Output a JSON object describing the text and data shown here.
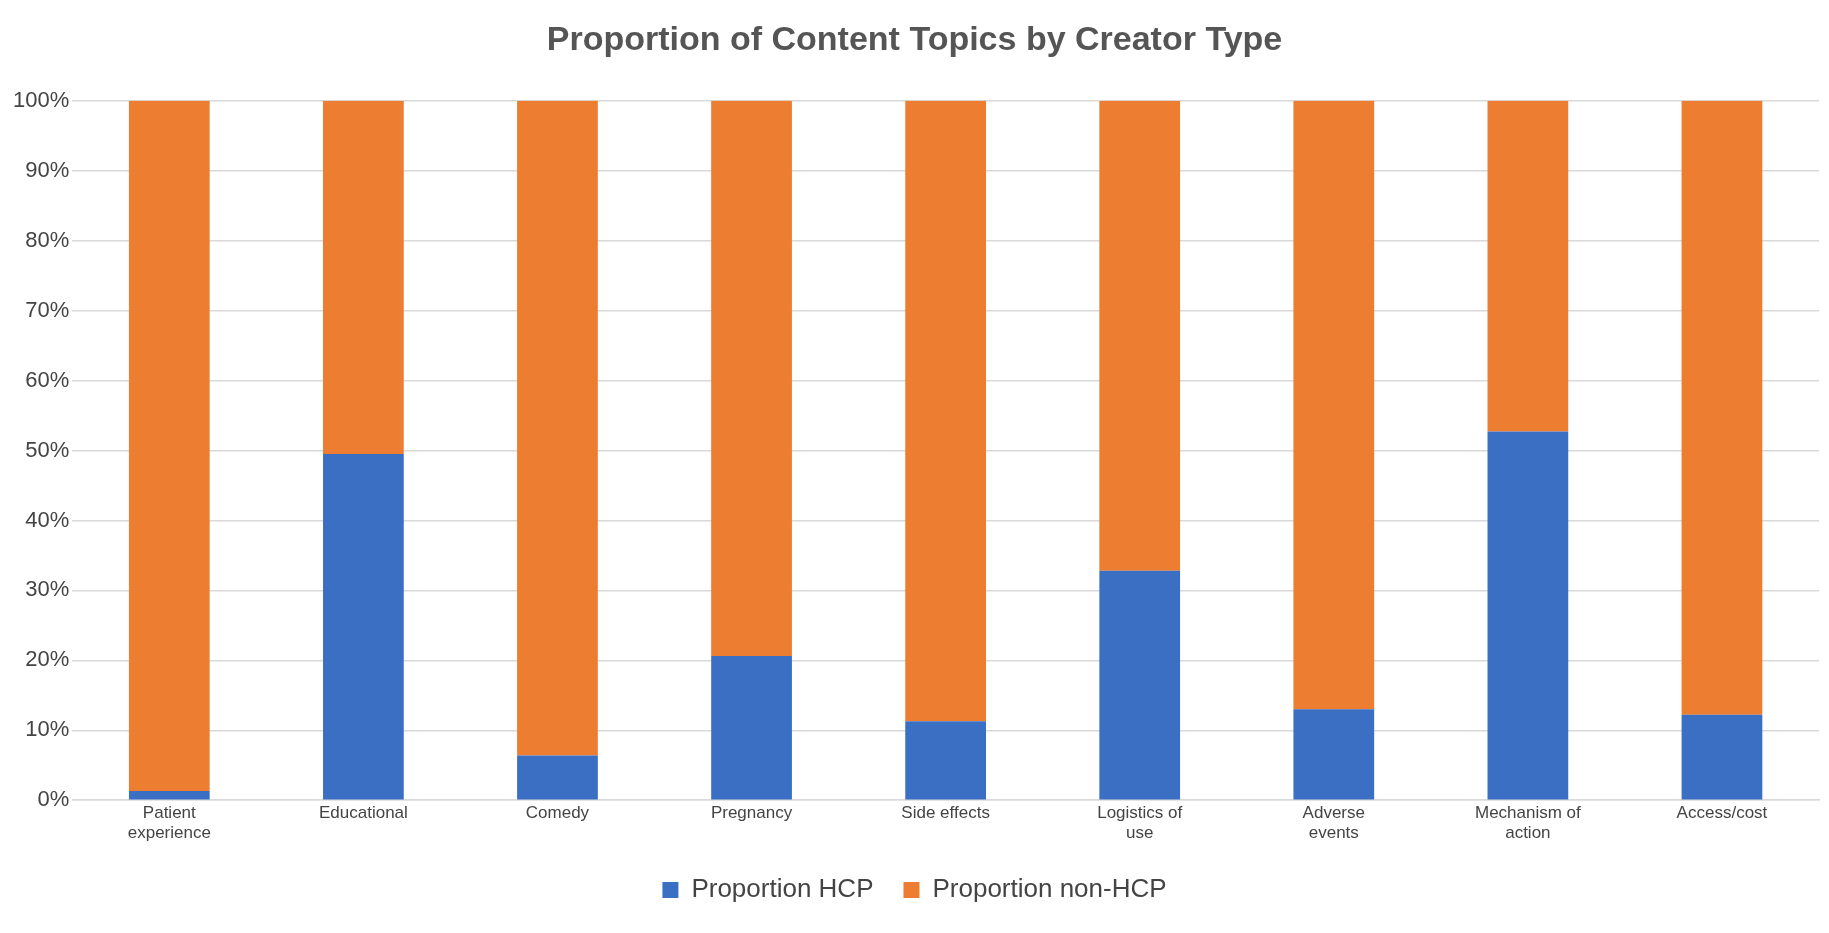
{
  "chart_data": {
    "type": "bar",
    "title": "Proportion of Content Topics by Creator Type",
    "categories": [
      "Patient experience",
      "Educational",
      "Comedy",
      "Pregnancy",
      "Side effects",
      "Logistics of use",
      "Adverse events",
      "Mechanism of action",
      "Access/cost"
    ],
    "series": [
      {
        "name": "Proportion HCP",
        "color": "#3a6fc4",
        "values": [
          1.3,
          49.5,
          6.4,
          20.6,
          11.3,
          32.8,
          13,
          52.7,
          12.2
        ]
      },
      {
        "name": "Proportion non-HCP",
        "color": "#ed7d31",
        "values": [
          98.7,
          50.5,
          93.6,
          79.4,
          88.7,
          67.2,
          87,
          47.3,
          87.8
        ]
      }
    ],
    "stacked": true,
    "ylim": [
      0,
      100
    ],
    "yticks": [
      {
        "value": 0,
        "label": "0%"
      },
      {
        "value": 10,
        "label": "10%"
      },
      {
        "value": 20,
        "label": "20%"
      },
      {
        "value": 30,
        "label": "30%"
      },
      {
        "value": 40,
        "label": "40%"
      },
      {
        "value": 50,
        "label": "50%"
      },
      {
        "value": 60,
        "label": "60%"
      },
      {
        "value": 70,
        "label": "70%"
      },
      {
        "value": 80,
        "label": "80%"
      },
      {
        "value": 90,
        "label": "90%"
      },
      {
        "value": 100,
        "label": "100%"
      }
    ],
    "grid": "y",
    "legend": "bottom"
  }
}
